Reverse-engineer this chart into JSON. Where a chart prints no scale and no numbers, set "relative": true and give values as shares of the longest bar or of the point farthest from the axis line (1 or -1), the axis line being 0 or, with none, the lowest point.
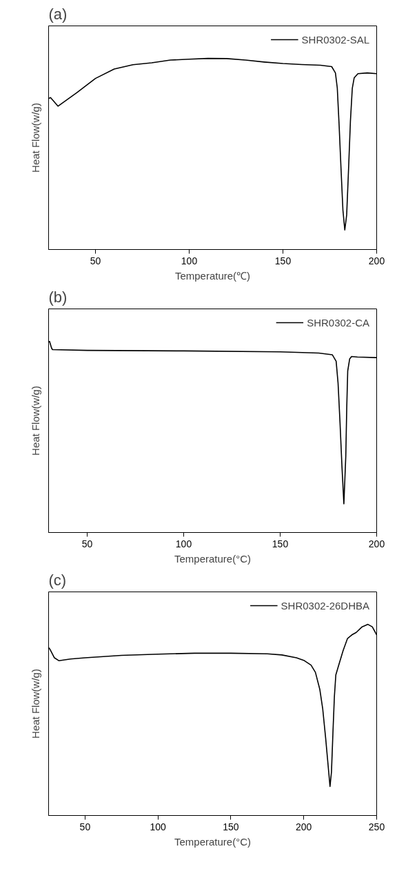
{
  "chart_data": [
    {
      "type": "line",
      "title": "(a)",
      "xlabel": "Temperature(℃)",
      "ylabel": "Heat Flow(w/g)",
      "relative": true,
      "xlim": [
        25,
        200
      ],
      "xticks": [
        50,
        100,
        150,
        200
      ],
      "grid": false,
      "legend": "top right",
      "marker": "none",
      "line_style": "solid",
      "tick_labels": "x",
      "series": [
        {
          "name": "SHR0302-SAL",
          "color": "#000000",
          "x": [
            25,
            26,
            30,
            40,
            50,
            60,
            70,
            80,
            90,
            100,
            110,
            120,
            130,
            140,
            150,
            160,
            170,
            176,
            178,
            179,
            180,
            181,
            182,
            183,
            184,
            185,
            186,
            187,
            188,
            190,
            195,
            200
          ],
          "values": [
            0.79,
            0.795,
            0.75,
            0.82,
            0.895,
            0.944,
            0.967,
            0.977,
            0.991,
            0.996,
            1.0,
            0.999,
            0.991,
            0.981,
            0.973,
            0.968,
            0.964,
            0.957,
            0.924,
            0.844,
            0.644,
            0.419,
            0.206,
            0.102,
            0.181,
            0.419,
            0.672,
            0.844,
            0.898,
            0.92,
            0.924,
            0.92
          ]
        }
      ]
    },
    {
      "type": "line",
      "title": "(b)",
      "xlabel": "Temperature(°C)",
      "ylabel": "Heat Flow(w/g)",
      "relative": true,
      "xlim": [
        30,
        200
      ],
      "xticks": [
        50,
        100,
        150,
        200
      ],
      "grid": false,
      "legend": "top right",
      "marker": "none",
      "line_style": "solid",
      "tick_labels": "x",
      "series": [
        {
          "name": "SHR0302-CA",
          "color": "#000000",
          "x": [
            30,
            30.5,
            31.5,
            32,
            50,
            100,
            150,
            170,
            177,
            179,
            180,
            181,
            182,
            183,
            184,
            184.5,
            185,
            186,
            187,
            190,
            200
          ],
          "values": [
            0.997,
            1.0,
            0.966,
            0.957,
            0.953,
            0.95,
            0.945,
            0.939,
            0.93,
            0.896,
            0.781,
            0.577,
            0.348,
            0.15,
            0.399,
            0.654,
            0.845,
            0.908,
            0.921,
            0.918,
            0.915
          ]
        }
      ]
    },
    {
      "type": "line",
      "title": "(c)",
      "xlabel": "Temperature(°C)",
      "ylabel": "Heat Flow(w/g)",
      "relative": true,
      "xlim": [
        25,
        250
      ],
      "xticks": [
        50,
        100,
        150,
        200,
        250
      ],
      "grid": false,
      "legend": "top right",
      "marker": "none",
      "line_style": "solid",
      "tick_labels": "x",
      "series": [
        {
          "name": "SHR0302-26DHBA",
          "color": "#000000",
          "x": [
            25,
            26,
            29,
            32,
            40,
            50,
            75,
            100,
            125,
            150,
            175,
            185,
            195,
            200,
            205,
            208,
            211,
            213,
            215,
            216.5,
            218,
            219,
            220,
            221,
            222,
            224,
            227,
            230,
            233,
            236,
            240,
            244,
            247,
            250
          ],
          "values": [
            0.878,
            0.869,
            0.825,
            0.81,
            0.819,
            0.825,
            0.838,
            0.844,
            0.849,
            0.849,
            0.846,
            0.84,
            0.825,
            0.812,
            0.787,
            0.749,
            0.66,
            0.558,
            0.406,
            0.279,
            0.152,
            0.228,
            0.431,
            0.622,
            0.736,
            0.787,
            0.863,
            0.926,
            0.945,
            0.958,
            0.987,
            1.0,
            0.987,
            0.945
          ]
        }
      ]
    }
  ]
}
